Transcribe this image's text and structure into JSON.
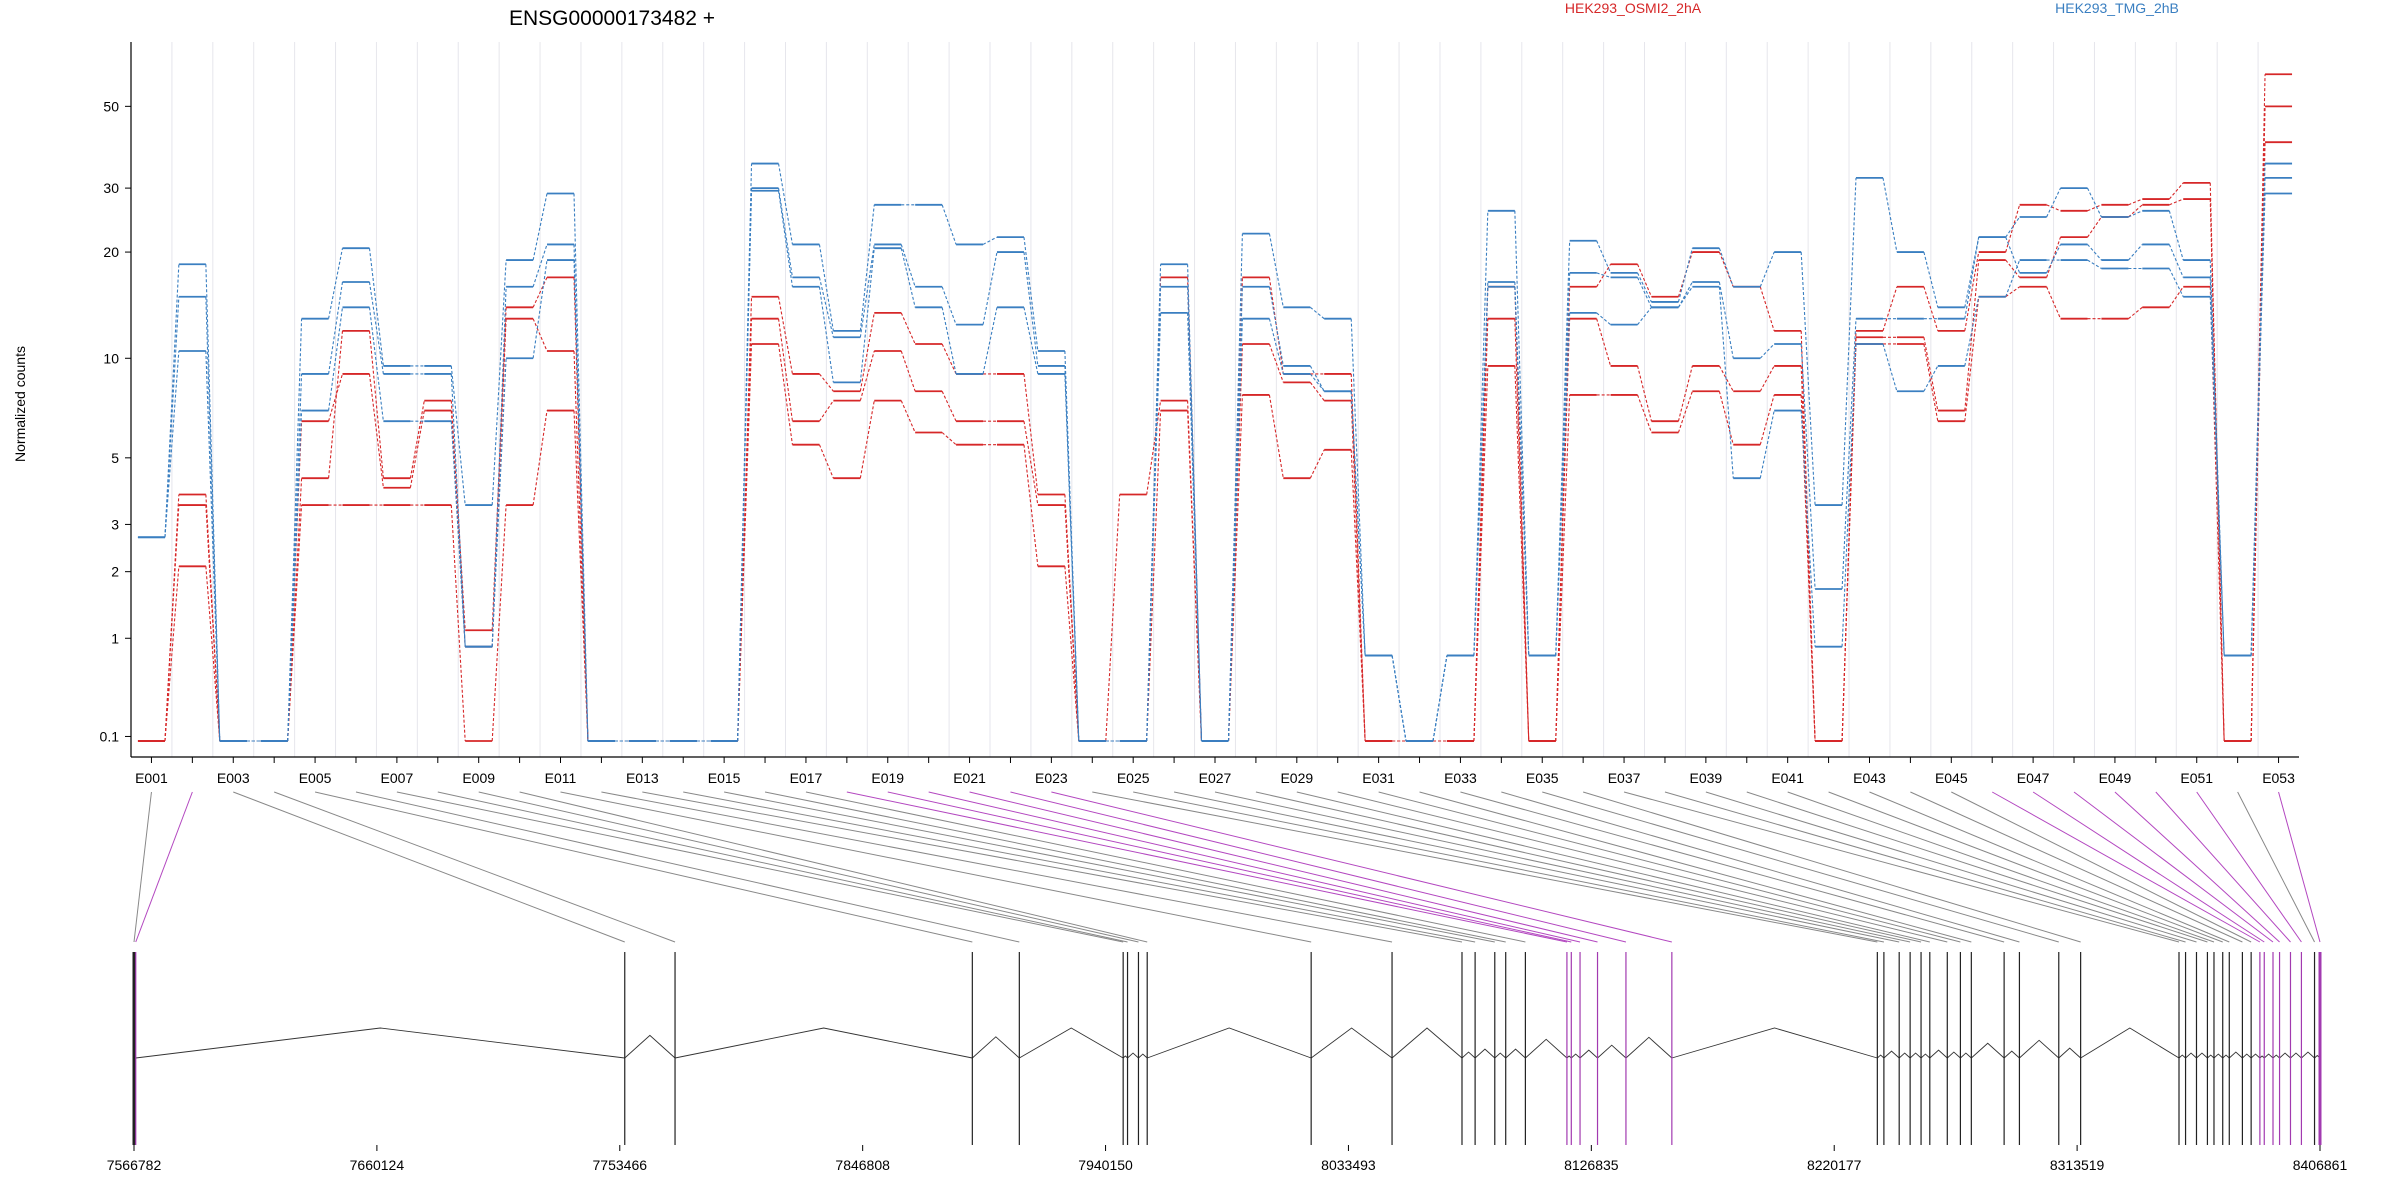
{
  "chart_data": {
    "type": "line",
    "title": "ENSG00000173482 +",
    "ylabel": "Normalized counts",
    "yscale": "log1p",
    "ylim": [
      0.07,
      70
    ],
    "y_ticks": [
      0.1,
      1,
      2,
      3,
      5,
      10,
      20,
      30,
      50
    ],
    "y_tick_labels": [
      "0.1",
      "1",
      "2",
      "3",
      "5",
      "10",
      "20",
      "30",
      "50"
    ],
    "grid": "vertical",
    "legend": [
      {
        "name": "HEK293_OSMI2_2hA",
        "color": "#d62728"
      },
      {
        "name": "HEK293_TMG_2hB",
        "color": "#3a7fc1"
      }
    ],
    "categories": [
      "E001",
      "E002",
      "E003",
      "E004",
      "E005",
      "E006",
      "E007",
      "E008",
      "E009",
      "E010",
      "E011",
      "E012",
      "E013",
      "E014",
      "E015",
      "E016",
      "E017",
      "E018",
      "E019",
      "E020",
      "E021",
      "E022",
      "E023",
      "E024",
      "E025",
      "E026",
      "E027",
      "E028",
      "E029",
      "E030",
      "E031",
      "E032",
      "E033",
      "E034",
      "E035",
      "E036",
      "E037",
      "E038",
      "E039",
      "E040",
      "E041",
      "E042",
      "E043",
      "E044",
      "E045",
      "E046",
      "E047",
      "E048",
      "E049",
      "E050",
      "E051",
      "E052",
      "E053"
    ],
    "x_tick_labels": [
      "E001",
      "E003",
      "E005",
      "E007",
      "E009",
      "E011",
      "E013",
      "E015",
      "E017",
      "E019",
      "E021",
      "E023",
      "E025",
      "E027",
      "E029",
      "E031",
      "E033",
      "E035",
      "E037",
      "E039",
      "E041",
      "E043",
      "E045",
      "E047",
      "E049",
      "E051",
      "E053"
    ],
    "series": [
      {
        "color": "#d62728",
        "values": [
          0.07,
          3.8,
          0.07,
          0.07,
          4.3,
          12,
          4.3,
          7.5,
          1.1,
          14,
          17,
          0.07,
          0.07,
          0.07,
          0.07,
          15,
          9,
          8,
          13.5,
          11,
          9,
          9,
          3.8,
          0.07,
          0.07,
          17,
          0.07,
          17,
          9,
          9,
          0.07,
          0.07,
          0.07,
          16,
          0.07,
          16,
          18.5,
          15,
          20,
          16,
          12,
          0.07,
          12,
          16,
          12,
          20,
          27,
          26,
          27,
          28,
          31,
          0.07,
          61
        ]
      },
      {
        "color": "#d62728",
        "values": [
          0.07,
          3.5,
          0.07,
          0.07,
          6.5,
          9,
          4,
          7,
          0.9,
          13,
          10.5,
          0.07,
          0.07,
          0.07,
          0.07,
          13,
          6.5,
          7.5,
          10.5,
          8,
          6.5,
          6.5,
          3.5,
          0.07,
          0.07,
          7,
          0.07,
          11,
          8.5,
          7.5,
          0.07,
          0.07,
          0.07,
          13,
          0.07,
          13,
          9.5,
          6.5,
          9.5,
          8,
          9.5,
          0.07,
          11.5,
          11.5,
          7,
          19,
          17,
          22,
          25,
          27,
          28,
          0.07,
          50
        ]
      },
      {
        "color": "#d62728",
        "values": [
          0.07,
          2.1,
          0.07,
          0.07,
          3.5,
          3.5,
          3.5,
          3.5,
          0.07,
          3.5,
          7,
          0.07,
          0.07,
          0.07,
          0.07,
          11,
          5.5,
          4.3,
          7.5,
          6,
          5.5,
          5.5,
          2.1,
          0.07,
          3.8,
          7.5,
          0.07,
          7.8,
          4.3,
          5.3,
          0.07,
          0.07,
          0.07,
          9.5,
          0.07,
          7.8,
          7.8,
          6,
          8,
          5.5,
          7.8,
          0.07,
          11,
          11,
          6.5,
          15,
          16,
          13,
          13,
          14,
          16,
          0.07,
          40
        ]
      },
      {
        "color": "#3a7fc1",
        "values": [
          2.7,
          18.5,
          0.07,
          0.07,
          13,
          20.5,
          9.5,
          9.5,
          3.5,
          19,
          29,
          0.07,
          0.07,
          0.07,
          0.07,
          35,
          21,
          12,
          27,
          27,
          21,
          22,
          10.5,
          0.07,
          0.07,
          18.5,
          0.07,
          22.5,
          14,
          13,
          0.8,
          0.07,
          0.8,
          26,
          0.8,
          21.5,
          17.5,
          14.5,
          20.5,
          16,
          20,
          3.5,
          32,
          20,
          14,
          22,
          25,
          30,
          25,
          26,
          19,
          0.8,
          35
        ]
      },
      {
        "color": "#3a7fc1",
        "values": [
          2.7,
          15,
          0.07,
          0.07,
          9,
          16.5,
          9,
          9,
          0.9,
          16,
          21,
          0.07,
          0.07,
          0.07,
          0.07,
          30,
          17,
          11.5,
          21,
          16,
          12.5,
          20,
          9.5,
          0.07,
          0.07,
          16,
          0.07,
          16,
          9.5,
          8,
          0.8,
          0.07,
          0.8,
          16.5,
          0.8,
          17.5,
          17,
          14,
          16.5,
          10,
          11,
          1.7,
          13,
          13,
          13,
          22,
          17.5,
          21,
          19,
          21,
          17,
          0.8,
          32
        ]
      },
      {
        "color": "#3a7fc1",
        "values": [
          2.7,
          10.5,
          0.07,
          0.07,
          7,
          14,
          6.5,
          6.5,
          0.9,
          10,
          19,
          0.07,
          0.07,
          0.07,
          0.07,
          29.5,
          16,
          8.5,
          20.5,
          14,
          9,
          14,
          9,
          0.07,
          0.07,
          13.5,
          0.07,
          13,
          9,
          8,
          0.8,
          0.07,
          0.8,
          16,
          0.8,
          13.5,
          12.5,
          14,
          16,
          4.3,
          7,
          0.9,
          11,
          8,
          9.5,
          15,
          19,
          19,
          18,
          18,
          15,
          0.8,
          29
        ]
      }
    ]
  },
  "gene_model": {
    "coord_labels": [
      "7566782",
      "7660124",
      "7753466",
      "7846808",
      "7940150",
      "8033493",
      "8126835",
      "8220177",
      "8313519",
      "8406861"
    ]
  }
}
